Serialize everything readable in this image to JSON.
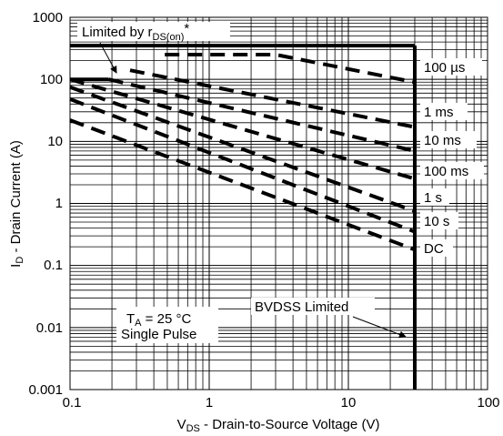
{
  "chart_data": {
    "type": "line",
    "x_scale": "log",
    "y_scale": "log",
    "xlim": [
      0.1,
      100
    ],
    "ylim": [
      0.001,
      1000
    ],
    "x_ticks": [
      "0.1",
      "1",
      "10",
      "100"
    ],
    "y_ticks": [
      "0.001",
      "0.01",
      "0.1",
      "1",
      "10",
      "100",
      "1000"
    ],
    "xlabel": {
      "main": "V",
      "sub": "DS",
      "rest": " -  Drain-to-Source Voltage (V)"
    },
    "ylabel": {
      "main": "I",
      "sub": "D",
      "rest": " -  Drain Current (A)"
    },
    "grid": true,
    "series": [
      {
        "name": "100 µs",
        "style": "dashed",
        "points": [
          [
            0.48,
            250
          ],
          [
            3.0,
            250
          ],
          [
            30,
            90
          ]
        ]
      },
      {
        "name": "1 ms",
        "style": "dashed",
        "points": [
          [
            0.27,
            140
          ],
          [
            30,
            17
          ]
        ]
      },
      {
        "name": "10 ms",
        "style": "dashed",
        "points": [
          [
            0.19,
            100
          ],
          [
            30,
            7
          ]
        ]
      },
      {
        "name": "100 ms",
        "style": "dashed",
        "points": [
          [
            0.1,
            100
          ],
          [
            30,
            2.5
          ]
        ]
      },
      {
        "name": "1 s",
        "style": "dashed",
        "points": [
          [
            0.1,
            75
          ],
          [
            30,
            0.75
          ]
        ]
      },
      {
        "name": "10 s",
        "style": "dashed",
        "points": [
          [
            0.1,
            48
          ],
          [
            30,
            0.35
          ]
        ]
      },
      {
        "name": "DC",
        "style": "dashed",
        "points": [
          [
            0.1,
            22
          ],
          [
            30,
            0.18
          ]
        ]
      }
    ],
    "limits": [
      {
        "name": "current-limit",
        "style": "solid",
        "points": [
          [
            0.1,
            100
          ],
          [
            0.19,
            100
          ]
        ]
      },
      {
        "name": "package-limit",
        "style": "solid",
        "points": [
          [
            0.1,
            350
          ],
          [
            30,
            350
          ]
        ]
      },
      {
        "name": "bvdss-limit",
        "style": "solid",
        "points": [
          [
            30,
            350
          ],
          [
            30,
            0.001
          ]
        ]
      }
    ],
    "annotations": {
      "rds_limit": {
        "main": "Limited by r",
        "sub": "DS(on)",
        "sup": "*"
      },
      "bvdss": "BVDSS Limited",
      "conditions_line1": {
        "main": "T",
        "sub": "A",
        "rest": " = 25 °C"
      },
      "conditions_line2": "Single Pulse"
    }
  }
}
